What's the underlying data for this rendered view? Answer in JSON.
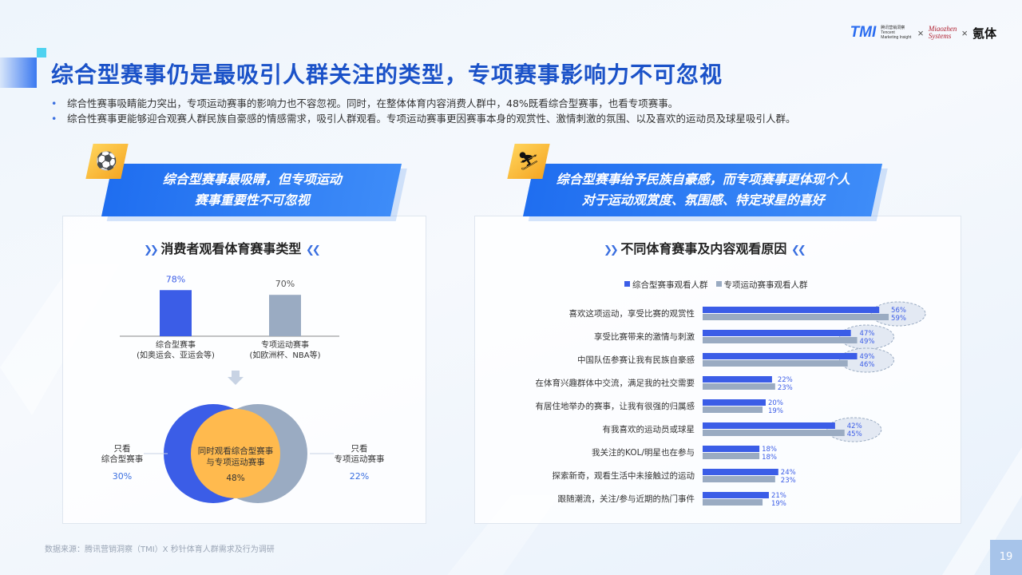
{
  "header": {
    "logo_tmi": "TMI",
    "logo_tmi_sub": "腾讯营销洞察 Tencent Marketing Insight",
    "logo_times": "×",
    "logo_miaozhen_1": "Miaozhen",
    "logo_miaozhen_2": "Systems",
    "logo_kt": "氪体"
  },
  "title": "综合型赛事仍是最吸引人群关注的类型，专项赛事影响力不可忽视",
  "bullets": [
    "综合性赛事吸睛能力突出，专项运动赛事的影响力也不容忽视。同时，在整体体育内容消费人群中，48%既看综合型赛事，也看专项赛事。",
    "综合性赛事更能够迎合观赛人群民族自豪感的情感需求，吸引人群观看。专项运动赛事更因赛事本身的观赏性、激情刺激的氛围、以及喜欢的运动员及球星吸引人群。"
  ],
  "left": {
    "icon": "soccer-ball-icon",
    "banner_line1": "综合型赛事最吸睛，但专项运动",
    "banner_line2": "赛事重要性不可忽视",
    "chart_title": "消费者观看体育赛事类型",
    "venn": {
      "only_a_line1": "只看",
      "only_a_line2": "综合型赛事",
      "only_a_pct": "30%",
      "only_b_line1": "只看",
      "only_b_line2": "专项运动赛事",
      "only_b_pct": "22%",
      "both_line1": "同时观看综合型赛事",
      "both_line2": "与专项运动赛事",
      "both_pct": "48%"
    }
  },
  "right": {
    "icon": "skier-icon",
    "banner_line1": "综合型赛事给予民族自豪感，而专项赛事更体现个人",
    "banner_line2": "对于运动观赏度、氛围感、特定球星的喜好",
    "chart_title": "不同体育赛事及内容观看原因"
  },
  "chart_data": [
    {
      "type": "bar",
      "title": "消费者观看体育赛事类型",
      "categories": [
        [
          "综合型赛事",
          "(如奥运会、亚运会等)"
        ],
        [
          "专项运动赛事",
          "(如欧洲杯、NBA等)"
        ]
      ],
      "values": [
        78,
        70
      ],
      "labels": [
        "78%",
        "70%"
      ],
      "colors": [
        "#3b5de7",
        "#9aabc2"
      ],
      "ylim": [
        0,
        100
      ]
    },
    {
      "type": "bar",
      "orientation": "horizontal",
      "title": "不同体育赛事及内容观看原因",
      "legend": "top",
      "categories": [
        "喜欢这项运动，享受比赛的观赏性",
        "享受比赛带来的激情与刺激",
        "中国队伍参赛让我有民族自豪感",
        "在体育兴趣群体中交流，满足我的社交需要",
        "有居住地举办的赛事，让我有很强的归属感",
        "有我喜欢的运动员或球星",
        "我关注的KOL/明星也在参与",
        "探索新奇，观看生活中未接触过的运动",
        "跟随潮流，关注/参与近期的热门事件"
      ],
      "series": [
        {
          "name": "综合型赛事观看人群",
          "color": "#3b5de7",
          "values": [
            56,
            47,
            49,
            22,
            20,
            42,
            18,
            24,
            21
          ]
        },
        {
          "name": "专项运动赛事观看人群",
          "color": "#9aabc2",
          "values": [
            59,
            49,
            46,
            23,
            19,
            45,
            18,
            23,
            19
          ]
        }
      ],
      "highlighted_rows": [
        0,
        1,
        2,
        5
      ],
      "xlim": [
        0,
        100
      ]
    }
  ],
  "footer": "数据来源：腾讯营销洞察（TMI）X 秒针体育人群需求及行为调研",
  "page_number": "19"
}
